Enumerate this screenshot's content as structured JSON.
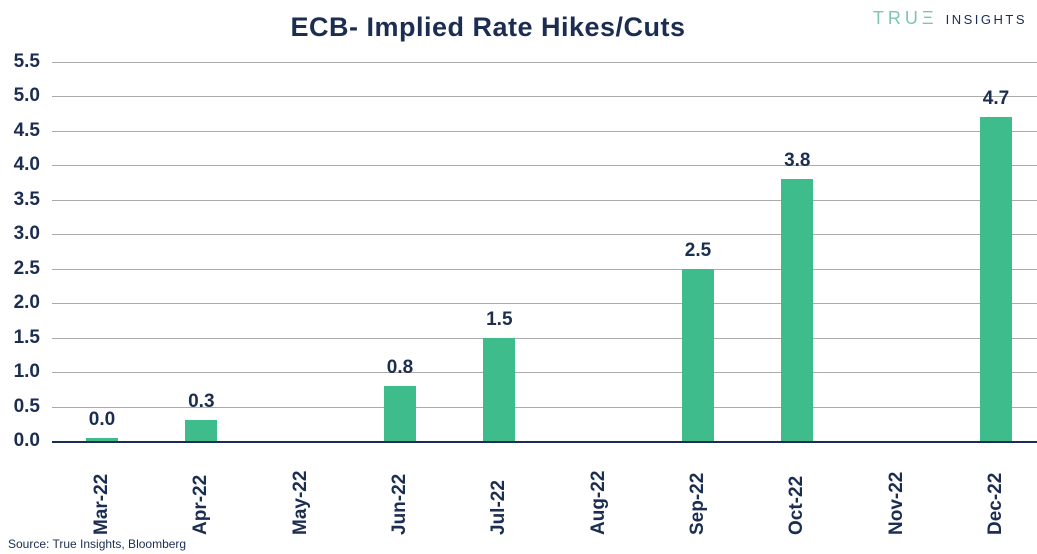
{
  "header": {
    "title": "ECB- Implied Rate Hikes/Cuts",
    "logo_brand": "TRUΞ",
    "logo_suffix": "INSIGHTS"
  },
  "footer": {
    "source": "Source: True Insights, Bloomberg"
  },
  "colors": {
    "bar": "#3EBC8B",
    "navy": "#1B2D50",
    "logo_green": "#7CC7A8",
    "gridline": "#ABABAB",
    "background": "#FFFFFF"
  },
  "chart_data": {
    "type": "bar",
    "title": "ECB- Implied Rate Hikes/Cuts",
    "categories": [
      "Mar-22",
      "Apr-22",
      "May-22",
      "Jun-22",
      "Jul-22",
      "Aug-22",
      "Sep-22",
      "Oct-22",
      "Nov-22",
      "Dec-22"
    ],
    "values": [
      0.0,
      0.3,
      null,
      0.8,
      1.5,
      null,
      2.5,
      3.8,
      null,
      4.7
    ],
    "bar_labels": [
      "0.0",
      "0.3",
      null,
      "0.8",
      "1.5",
      null,
      "2.5",
      "3.8",
      null,
      "4.7"
    ],
    "y_ticks": [
      "5.5",
      "5.0",
      "4.5",
      "4.0",
      "3.5",
      "3.0",
      "2.5",
      "2.0",
      "1.5",
      "1.0",
      "0.5",
      "0.0"
    ],
    "ylim": [
      0,
      5.5
    ],
    "xlabel": "",
    "ylabel": "",
    "grid": true,
    "legend": false,
    "bar_color": "#3EBC8B",
    "source": "Source: True Insights, Bloomberg"
  }
}
